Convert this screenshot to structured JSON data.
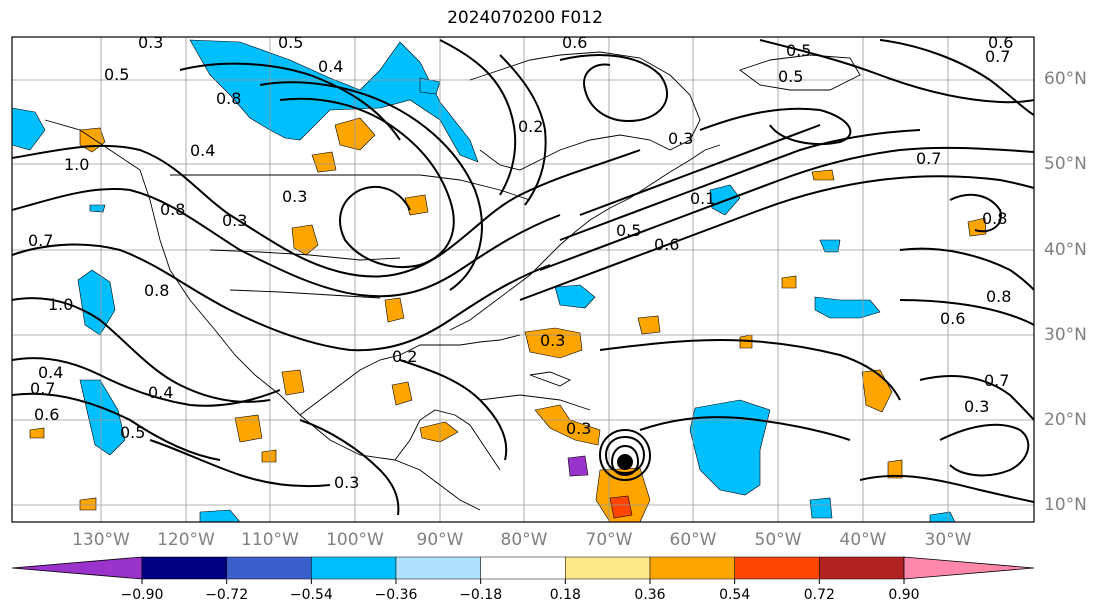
{
  "title": "2024070200 F012",
  "map": {
    "lat_labels": [
      "60°N",
      "50°N",
      "40°N",
      "30°N",
      "20°N",
      "10°N"
    ],
    "lon_labels": [
      "130°W",
      "120°W",
      "110°W",
      "100°W",
      "90°W",
      "80°W",
      "70°W",
      "60°W",
      "50°W",
      "40°W",
      "30°W"
    ]
  },
  "contour_labels": [
    "0.3",
    "0.5",
    "0.4",
    "0.6",
    "0.5",
    "0.7",
    "0.5",
    "0.5",
    "0.3",
    "0.8",
    "0.4",
    "1.0",
    "0.8",
    "0.7",
    "1.0",
    "0.3",
    "0.2",
    "0.3",
    "0.3",
    "0.7",
    "0.8",
    "0.6",
    "0.5",
    "0.4",
    "0.6",
    "0.5",
    "0.3",
    "0.7",
    "0.8",
    "0.6",
    "0.7",
    "0.3",
    "0.3",
    "0.2",
    "0.8",
    "0.1",
    "0.6",
    "0.4"
  ],
  "colorbar": {
    "colors": [
      "#9933cc",
      "#000080",
      "#3a5fcd",
      "#00bfff",
      "#b0e2ff",
      "#ffffff",
      "#ffe88a",
      "#ffa500",
      "#ff4500",
      "#b22222",
      "#ff88aa"
    ],
    "tick_labels": [
      "−0.90",
      "−0.72",
      "−0.54",
      "−0.36",
      "−0.18",
      "0.18",
      "0.36",
      "0.54",
      "0.72",
      "0.90"
    ]
  },
  "fill_colors": {
    "light_blue": "#00bfff",
    "orange": "#ffa500",
    "red": "#ff4500",
    "purple": "#9933cc"
  }
}
